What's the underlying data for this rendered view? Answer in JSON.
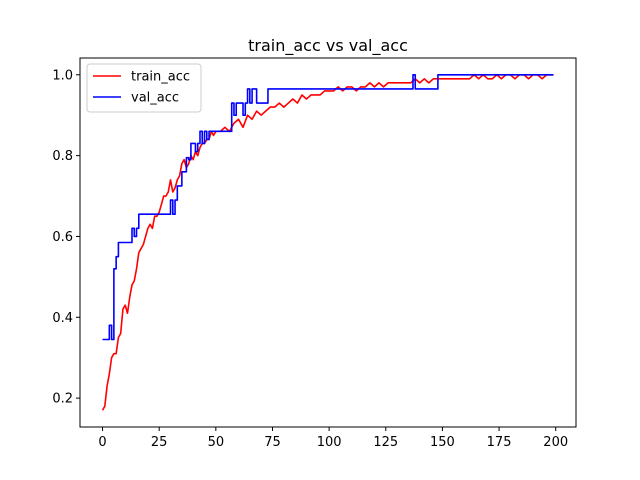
{
  "chart_data": {
    "type": "line",
    "title": "train_acc vs val_acc",
    "xlabel": "",
    "ylabel": "",
    "xlim": [
      -9.95,
      208.95
    ],
    "ylim": [
      0.1285,
      1.0415
    ],
    "xticks": [
      0,
      25,
      50,
      75,
      100,
      125,
      150,
      175,
      200
    ],
    "xtick_labels": [
      "0",
      "25",
      "50",
      "75",
      "100",
      "125",
      "150",
      "175",
      "200"
    ],
    "yticks": [
      0.2,
      0.4,
      0.6,
      0.8,
      1.0
    ],
    "ytick_labels": [
      "0.2",
      "0.4",
      "0.6",
      "0.8",
      "1.0"
    ],
    "grid": false,
    "legend_position": "upper-left",
    "series": [
      {
        "name": "train_acc",
        "color": "#ff0000",
        "x": [
          0,
          1,
          2,
          3,
          4,
          5,
          6,
          7,
          8,
          9,
          10,
          11,
          12,
          13,
          14,
          15,
          16,
          17,
          18,
          19,
          20,
          21,
          22,
          23,
          24,
          25,
          26,
          27,
          28,
          29,
          30,
          31,
          32,
          33,
          34,
          35,
          36,
          37,
          38,
          39,
          40,
          41,
          42,
          43,
          44,
          45,
          46,
          47,
          48,
          49,
          50,
          52,
          54,
          56,
          58,
          60,
          62,
          64,
          66,
          68,
          70,
          72,
          74,
          76,
          78,
          80,
          82,
          84,
          86,
          88,
          90,
          92,
          94,
          96,
          98,
          100,
          102,
          104,
          106,
          108,
          110,
          112,
          114,
          116,
          118,
          120,
          122,
          124,
          126,
          128,
          130,
          132,
          134,
          136,
          138,
          140,
          142,
          144,
          146,
          148,
          150,
          152,
          154,
          156,
          158,
          160,
          162,
          164,
          166,
          168,
          170,
          172,
          174,
          176,
          178,
          180,
          182,
          184,
          186,
          188,
          190,
          192,
          194,
          196,
          198,
          199
        ],
        "y": [
          0.17,
          0.18,
          0.23,
          0.26,
          0.3,
          0.31,
          0.31,
          0.35,
          0.36,
          0.42,
          0.43,
          0.41,
          0.45,
          0.48,
          0.49,
          0.52,
          0.56,
          0.57,
          0.58,
          0.6,
          0.62,
          0.63,
          0.62,
          0.65,
          0.65,
          0.66,
          0.68,
          0.7,
          0.7,
          0.71,
          0.74,
          0.71,
          0.72,
          0.74,
          0.75,
          0.78,
          0.79,
          0.77,
          0.78,
          0.8,
          0.79,
          0.81,
          0.8,
          0.82,
          0.83,
          0.83,
          0.84,
          0.84,
          0.86,
          0.85,
          0.86,
          0.86,
          0.87,
          0.86,
          0.88,
          0.89,
          0.87,
          0.9,
          0.89,
          0.91,
          0.9,
          0.91,
          0.92,
          0.92,
          0.93,
          0.92,
          0.93,
          0.94,
          0.93,
          0.95,
          0.94,
          0.95,
          0.95,
          0.95,
          0.96,
          0.96,
          0.96,
          0.97,
          0.96,
          0.97,
          0.97,
          0.96,
          0.97,
          0.97,
          0.98,
          0.97,
          0.98,
          0.97,
          0.98,
          0.98,
          0.98,
          0.98,
          0.98,
          0.98,
          0.99,
          0.98,
          0.99,
          0.98,
          0.99,
          0.99,
          0.99,
          0.99,
          0.99,
          0.99,
          0.99,
          0.99,
          0.99,
          1.0,
          0.99,
          1.0,
          0.99,
          0.99,
          1.0,
          0.99,
          1.0,
          1.0,
          0.99,
          1.0,
          1.0,
          0.99,
          1.0,
          1.0,
          0.99,
          1.0,
          1.0,
          1.0
        ]
      },
      {
        "name": "val_acc",
        "color": "#0000ff",
        "step_x": [
          0,
          2,
          3,
          4,
          5,
          6,
          7,
          8,
          12,
          13,
          14,
          15,
          16,
          17,
          18,
          19,
          29,
          30,
          31,
          32,
          33,
          34,
          35,
          36,
          37,
          38,
          39,
          40,
          41,
          42,
          43,
          44,
          45,
          46,
          47,
          48,
          49,
          55,
          56,
          57,
          58,
          59,
          60,
          61,
          62,
          63,
          64,
          65,
          66,
          67,
          68,
          69,
          70,
          71,
          72,
          73,
          74,
          75,
          136,
          137,
          138,
          139,
          147,
          148,
          199
        ],
        "step_y": [
          0.345,
          0.345,
          0.38,
          0.345,
          0.52,
          0.55,
          0.585,
          0.585,
          0.585,
          0.62,
          0.6,
          0.62,
          0.655,
          0.655,
          0.655,
          0.655,
          0.655,
          0.69,
          0.655,
          0.69,
          0.725,
          0.725,
          0.76,
          0.76,
          0.795,
          0.79,
          0.83,
          0.83,
          0.81,
          0.83,
          0.86,
          0.83,
          0.86,
          0.84,
          0.86,
          0.86,
          0.86,
          0.86,
          0.86,
          0.93,
          0.9,
          0.93,
          0.93,
          0.93,
          0.9,
          0.93,
          0.965,
          0.93,
          0.965,
          0.965,
          0.93,
          0.93,
          0.93,
          0.93,
          0.93,
          0.965,
          0.965,
          0.965,
          0.965,
          1.0,
          0.965,
          0.965,
          0.965,
          1.0,
          1.0
        ]
      }
    ]
  }
}
